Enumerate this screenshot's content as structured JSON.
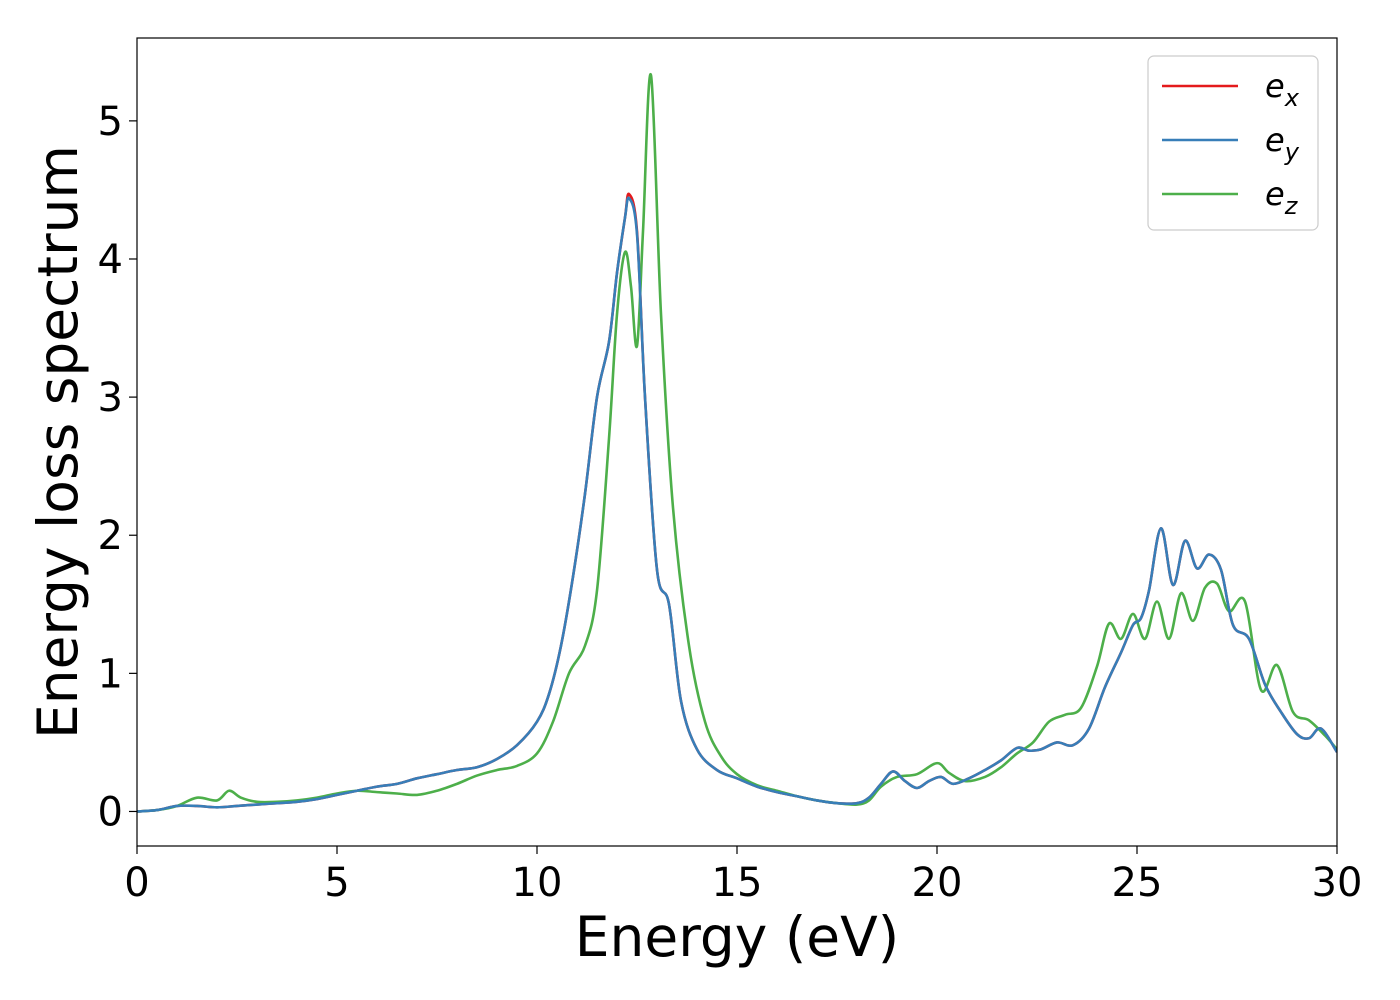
{
  "chart_data": {
    "type": "line",
    "title": "",
    "xlabel": "Energy (eV)",
    "ylabel": "Energy loss spectrum",
    "xlim": [
      0,
      30
    ],
    "ylim": [
      -0.25,
      5.6
    ],
    "xticks": [
      0,
      5,
      10,
      15,
      20,
      25,
      30
    ],
    "yticks": [
      0,
      1,
      2,
      3,
      4,
      5
    ],
    "grid": false,
    "legend": "top-right",
    "series": [
      {
        "name": "e",
        "subscript": "x",
        "color": "#e41a1c",
        "x": [
          0,
          0.5,
          1,
          1.5,
          2,
          2.5,
          3,
          3.5,
          4,
          4.5,
          5,
          5.5,
          6,
          6.5,
          7,
          7.5,
          8,
          8.5,
          9,
          9.5,
          10,
          10.3,
          10.6,
          10.9,
          11.2,
          11.5,
          11.8,
          12,
          12.2,
          12.3,
          12.5,
          12.7,
          13,
          13.3,
          13.6,
          14,
          14.5,
          15,
          15.5,
          16,
          16.5,
          17,
          17.5,
          18,
          18.3,
          18.6,
          18.9,
          19.2,
          19.5,
          19.8,
          20.1,
          20.4,
          20.8,
          21.2,
          21.6,
          22,
          22.3,
          22.6,
          23,
          23.4,
          23.8,
          24.2,
          24.6,
          24.9,
          25.1,
          25.3,
          25.6,
          25.9,
          26.2,
          26.5,
          26.8,
          27.1,
          27.4,
          27.8,
          28.2,
          28.6,
          29,
          29.3,
          29.6,
          30
        ],
        "y": [
          0,
          0.01,
          0.04,
          0.04,
          0.03,
          0.04,
          0.05,
          0.06,
          0.07,
          0.09,
          0.12,
          0.15,
          0.18,
          0.2,
          0.24,
          0.27,
          0.3,
          0.32,
          0.38,
          0.48,
          0.65,
          0.85,
          1.2,
          1.7,
          2.3,
          3.0,
          3.4,
          3.9,
          4.3,
          4.47,
          4.2,
          3.0,
          1.75,
          1.5,
          0.8,
          0.45,
          0.3,
          0.24,
          0.18,
          0.14,
          0.11,
          0.08,
          0.06,
          0.06,
          0.1,
          0.2,
          0.29,
          0.22,
          0.17,
          0.22,
          0.25,
          0.2,
          0.24,
          0.3,
          0.37,
          0.46,
          0.44,
          0.45,
          0.5,
          0.48,
          0.6,
          0.9,
          1.15,
          1.35,
          1.4,
          1.6,
          2.05,
          1.64,
          1.96,
          1.76,
          1.86,
          1.75,
          1.35,
          1.25,
          0.92,
          0.72,
          0.56,
          0.53,
          0.6,
          0.43
        ]
      },
      {
        "name": "e",
        "subscript": "y",
        "color": "#377eb8",
        "x": [
          0,
          0.5,
          1,
          1.5,
          2,
          2.5,
          3,
          3.5,
          4,
          4.5,
          5,
          5.5,
          6,
          6.5,
          7,
          7.5,
          8,
          8.5,
          9,
          9.5,
          10,
          10.3,
          10.6,
          10.9,
          11.2,
          11.5,
          11.8,
          12,
          12.2,
          12.3,
          12.5,
          12.7,
          13,
          13.3,
          13.6,
          14,
          14.5,
          15,
          15.5,
          16,
          16.5,
          17,
          17.5,
          18,
          18.3,
          18.6,
          18.9,
          19.2,
          19.5,
          19.8,
          20.1,
          20.4,
          20.8,
          21.2,
          21.6,
          22,
          22.3,
          22.6,
          23,
          23.4,
          23.8,
          24.2,
          24.6,
          24.9,
          25.1,
          25.3,
          25.6,
          25.9,
          26.2,
          26.5,
          26.8,
          27.1,
          27.4,
          27.8,
          28.2,
          28.6,
          29,
          29.3,
          29.6,
          30
        ],
        "y": [
          0,
          0.01,
          0.04,
          0.04,
          0.03,
          0.04,
          0.05,
          0.06,
          0.07,
          0.09,
          0.12,
          0.15,
          0.18,
          0.2,
          0.24,
          0.27,
          0.3,
          0.32,
          0.38,
          0.48,
          0.65,
          0.85,
          1.2,
          1.7,
          2.3,
          3.0,
          3.4,
          3.9,
          4.3,
          4.44,
          4.18,
          3.0,
          1.75,
          1.5,
          0.8,
          0.45,
          0.3,
          0.24,
          0.18,
          0.14,
          0.11,
          0.08,
          0.06,
          0.06,
          0.1,
          0.2,
          0.29,
          0.22,
          0.17,
          0.22,
          0.25,
          0.2,
          0.24,
          0.3,
          0.37,
          0.46,
          0.44,
          0.45,
          0.5,
          0.48,
          0.6,
          0.9,
          1.15,
          1.35,
          1.4,
          1.6,
          2.05,
          1.64,
          1.96,
          1.76,
          1.86,
          1.75,
          1.35,
          1.25,
          0.92,
          0.72,
          0.56,
          0.53,
          0.6,
          0.43
        ]
      },
      {
        "name": "e",
        "subscript": "z",
        "color": "#4daf4a",
        "x": [
          0,
          0.5,
          1,
          1.5,
          2,
          2.3,
          2.6,
          3,
          3.5,
          4,
          4.5,
          5,
          5.5,
          6,
          6.5,
          7,
          7.5,
          8,
          8.5,
          9,
          9.5,
          10,
          10.4,
          10.8,
          11.2,
          11.5,
          11.8,
          12,
          12.2,
          12.35,
          12.5,
          12.65,
          12.85,
          13.1,
          13.4,
          13.8,
          14.2,
          14.6,
          15,
          15.5,
          16,
          16.5,
          17,
          17.5,
          18,
          18.3,
          18.6,
          19,
          19.5,
          20,
          20.3,
          20.7,
          21.2,
          21.6,
          22,
          22.4,
          22.8,
          23.2,
          23.6,
          24,
          24.3,
          24.6,
          24.9,
          25.2,
          25.5,
          25.8,
          26.1,
          26.4,
          26.7,
          27,
          27.3,
          27.7,
          28.1,
          28.5,
          28.9,
          29.3,
          29.7,
          30
        ],
        "y": [
          0,
          0.01,
          0.04,
          0.1,
          0.08,
          0.15,
          0.1,
          0.07,
          0.07,
          0.08,
          0.1,
          0.13,
          0.15,
          0.14,
          0.13,
          0.12,
          0.15,
          0.2,
          0.26,
          0.3,
          0.33,
          0.42,
          0.65,
          1.0,
          1.2,
          1.6,
          2.7,
          3.6,
          4.05,
          3.8,
          3.37,
          4.2,
          5.33,
          3.6,
          2.2,
          1.2,
          0.65,
          0.4,
          0.27,
          0.19,
          0.15,
          0.11,
          0.08,
          0.06,
          0.05,
          0.08,
          0.18,
          0.25,
          0.27,
          0.35,
          0.28,
          0.22,
          0.25,
          0.32,
          0.42,
          0.5,
          0.65,
          0.7,
          0.75,
          1.05,
          1.36,
          1.25,
          1.43,
          1.25,
          1.52,
          1.25,
          1.58,
          1.38,
          1.62,
          1.65,
          1.45,
          1.52,
          0.88,
          1.06,
          0.72,
          0.66,
          0.55,
          0.45
        ]
      }
    ]
  }
}
